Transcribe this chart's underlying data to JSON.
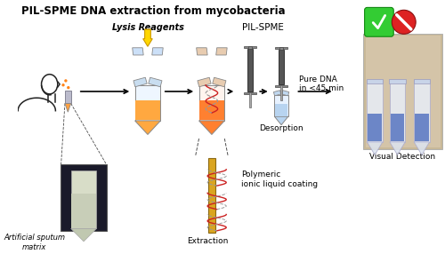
{
  "title": "PIL-SPME DNA extraction from mycobacteria",
  "title_fontsize": 8.5,
  "title_fontweight": "bold",
  "bg_color": "#ffffff",
  "figsize": [
    5.0,
    2.86
  ],
  "dpi": 100,
  "labels": {
    "artificial_sputum": "Artificial sputum\nmatrix",
    "lysis_reagents": "Lysis Reagents",
    "pil_spme": "PIL-SPME",
    "pure_dna": "Pure DNA\nin <45 min",
    "desorption": "Desorption",
    "polymeric": "Polymeric\nionic liquid coating",
    "extraction": "Extraction",
    "visual_detection": "Visual Detection"
  },
  "arrow_color": "#000000",
  "yellow_color": "#FFD700",
  "yellow_dark": "#cc9900",
  "check_green": "#33cc33",
  "no_red": "#dd2222",
  "tube_blue_body": "#ddeeff",
  "tube_orange": "#FFA040",
  "tube_outline": "#888888",
  "spme_dark": "#555555",
  "spme_mid": "#888888",
  "dna_red": "#cc2222",
  "pil_gold": "#DAA520",
  "pil_gold_dark": "#8B6914",
  "small_tube_blue": "#aaccee",
  "photo_bg": "#c8c0aa",
  "person_line": "#222222"
}
